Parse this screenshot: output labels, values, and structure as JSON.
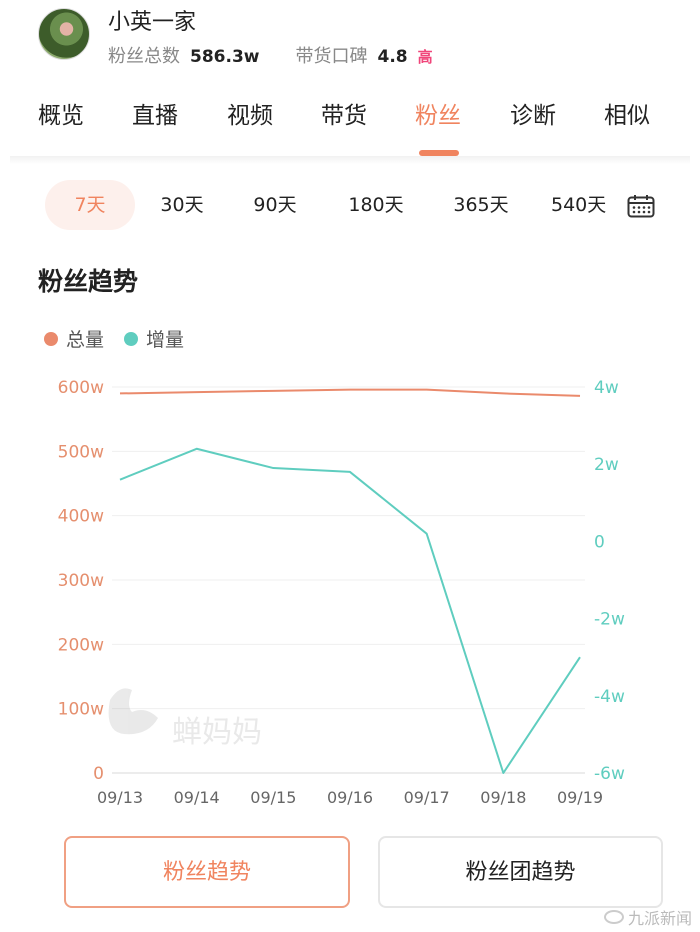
{
  "profile": {
    "name": "小英一家",
    "fans_label": "粉丝总数",
    "fans_value": "586.3w",
    "reputation_label": "带货口碑",
    "reputation_value": "4.8",
    "reputation_level": "高"
  },
  "tabs": [
    {
      "label": "概览"
    },
    {
      "label": "直播"
    },
    {
      "label": "视频"
    },
    {
      "label": "带货"
    },
    {
      "label": "粉丝",
      "active": true
    },
    {
      "label": "诊断"
    },
    {
      "label": "相似"
    }
  ],
  "periods": [
    {
      "label": "7天",
      "active": true
    },
    {
      "label": "30天"
    },
    {
      "label": "90天"
    },
    {
      "label": "180天"
    },
    {
      "label": "365天"
    },
    {
      "label": "540天"
    }
  ],
  "section_title": "粉丝趋势",
  "legend": {
    "total": "总量",
    "increment": "增量"
  },
  "watermark": "蝉妈妈",
  "buttons": {
    "fans_trend": "粉丝趋势",
    "fan_group_trend": "粉丝团趋势"
  },
  "source_mark": "九派新闻",
  "colors": {
    "accent": "#f0845f",
    "total_line": "#ea8a6c",
    "increment_line": "#5fcdbf",
    "badge": "#f0457a"
  },
  "chart_data": {
    "type": "line",
    "categories": [
      "09/13",
      "09/14",
      "09/15",
      "09/16",
      "09/17",
      "09/18",
      "09/19"
    ],
    "series": [
      {
        "name": "总量",
        "axis": "left",
        "values": [
          590,
          592,
          594,
          596,
          596,
          590,
          586.3
        ]
      },
      {
        "name": "增量",
        "axis": "right",
        "values": [
          1.6,
          2.4,
          1.9,
          1.8,
          0.2,
          -6.0,
          -3.0
        ]
      }
    ],
    "y_left": {
      "ticks": [
        "0",
        "100w",
        "200w",
        "300w",
        "400w",
        "500w",
        "600w"
      ],
      "min": 0,
      "max": 600
    },
    "y_right": {
      "ticks": [
        "-6w",
        "-4w",
        "-2w",
        "0",
        "2w",
        "4w"
      ],
      "min": -6,
      "max": 4
    },
    "grid": true
  }
}
